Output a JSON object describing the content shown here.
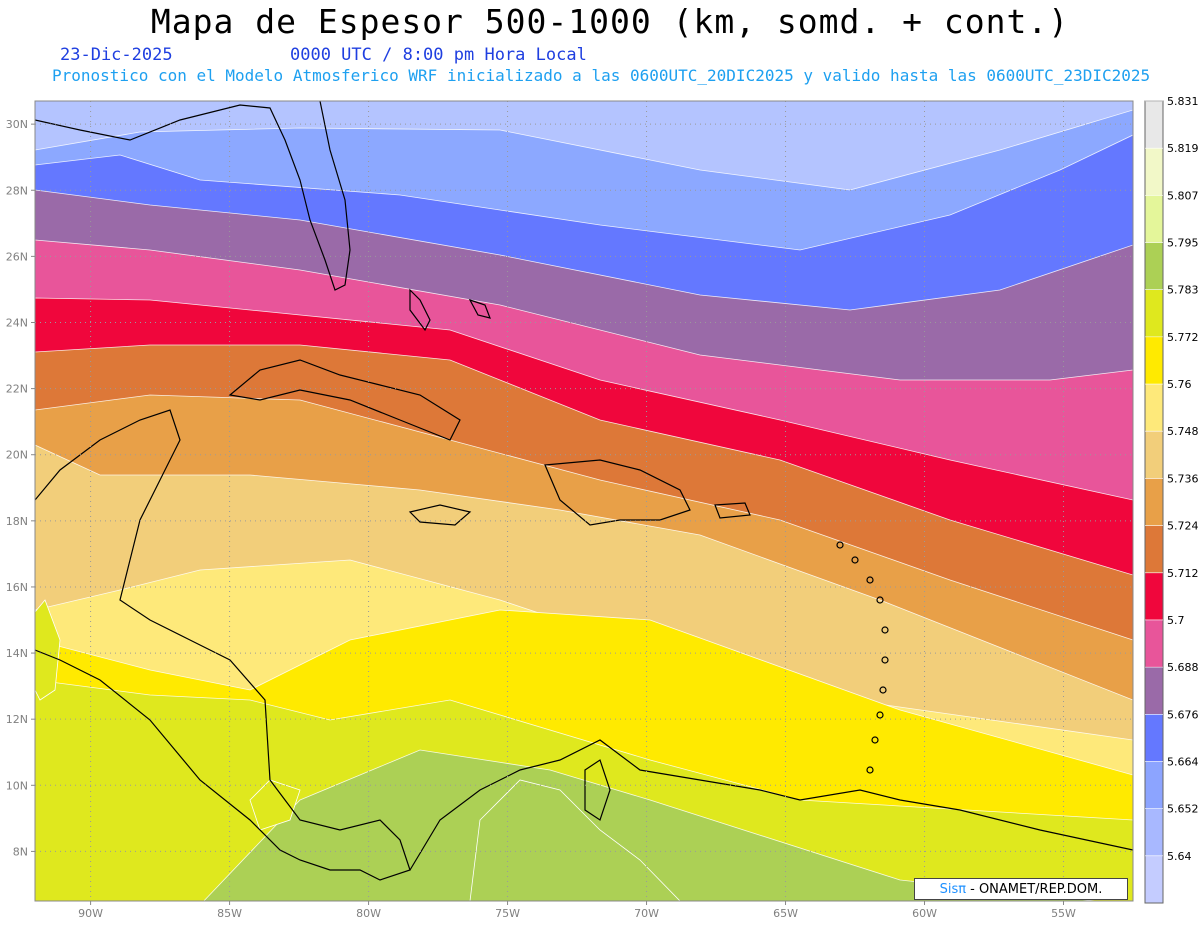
{
  "header": {
    "title": "Mapa de Espesor 500-1000 (km, somd. + cont.)",
    "date": "23-Dic-2025",
    "time": "0000 UTC / 8:00 pm Hora Local",
    "subtitle": "Pronostico con el Modelo Atmosferico WRF inicializado a las 0600UTC_20DIC2025 y valido hasta las  0600UTC_23DIC2025"
  },
  "map": {
    "lon_range": [
      -92,
      -52.5
    ],
    "lat_range": [
      6.5,
      30.7
    ],
    "lon_ticks": [
      {
        "value": -90,
        "label": "90W"
      },
      {
        "value": -85,
        "label": "85W"
      },
      {
        "value": -80,
        "label": "80W"
      },
      {
        "value": -75,
        "label": "75W"
      },
      {
        "value": -70,
        "label": "70W"
      },
      {
        "value": -65,
        "label": "65W"
      },
      {
        "value": -60,
        "label": "60W"
      },
      {
        "value": -55,
        "label": "55W"
      }
    ],
    "lat_ticks": [
      {
        "value": 30,
        "label": "30N"
      },
      {
        "value": 28,
        "label": "28N"
      },
      {
        "value": 26,
        "label": "26N"
      },
      {
        "value": 24,
        "label": "24N"
      },
      {
        "value": 22,
        "label": "22N"
      },
      {
        "value": 20,
        "label": "20N"
      },
      {
        "value": 18,
        "label": "18N"
      },
      {
        "value": 16,
        "label": "16N"
      },
      {
        "value": 14,
        "label": "14N"
      },
      {
        "value": 12,
        "label": "12N"
      },
      {
        "value": 10,
        "label": "10N"
      },
      {
        "value": 8,
        "label": "8N"
      }
    ],
    "grid": "dotted",
    "band_colors": [
      "#b4c4ff",
      "#8ca8ff",
      "#6478ff",
      "#9a6aa8",
      "#e8559a",
      "#f0063c",
      "#dd7838",
      "#e8a048",
      "#f2ce7a",
      "#fee97a",
      "#ffea00",
      "#dfe81e",
      "#acd055"
    ]
  },
  "colorbar": {
    "colors": [
      "#c4ccff",
      "#a8b8ff",
      "#8ca4ff",
      "#6478ff",
      "#9a6aa8",
      "#e8559a",
      "#f0063c",
      "#dd7838",
      "#e8a048",
      "#f2ce7a",
      "#fee97a",
      "#ffea00",
      "#dfe81e",
      "#acd055",
      "#e4f69a",
      "#f2f8c8",
      "#e8e8e8"
    ],
    "labels": [
      "5.64",
      "5.652",
      "5.664",
      "5.676",
      "5.688",
      "5.7",
      "5.712",
      "5.724",
      "5.736",
      "5.748",
      "5.76",
      "5.772",
      "5.783",
      "5.795",
      "5.807",
      "5.819",
      "5.831"
    ]
  },
  "credit": {
    "logo": "Sisπ",
    "text": "- ONAMET/REP.DOM."
  }
}
